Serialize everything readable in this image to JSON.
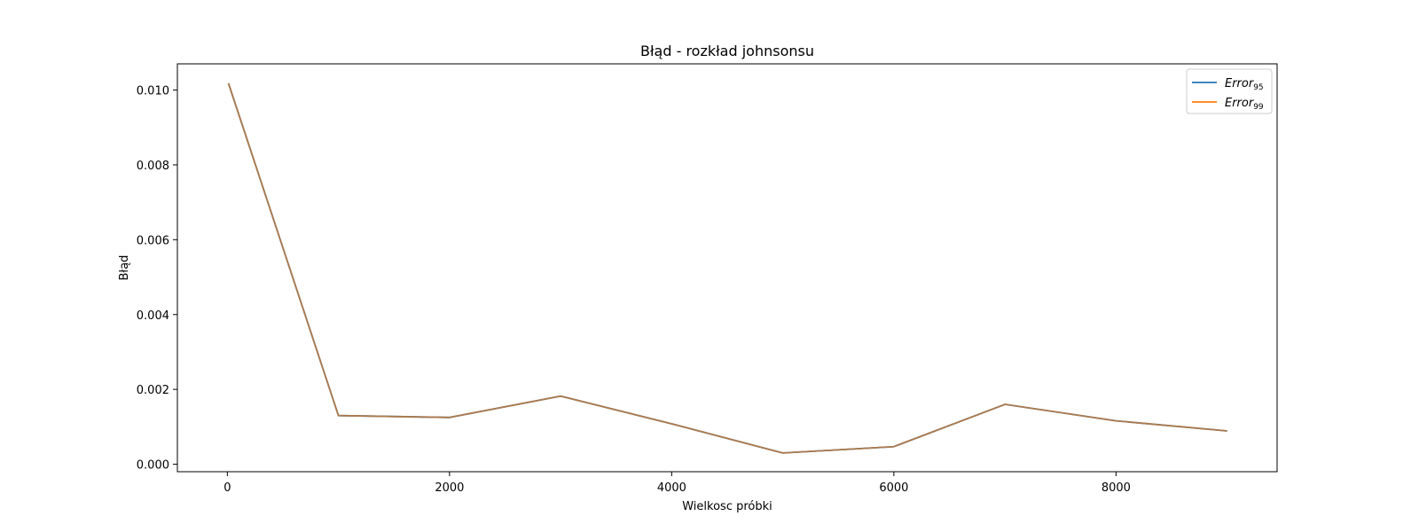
{
  "chart_data": {
    "type": "line",
    "title": "Błąd - rozkład johnsonsu",
    "xlabel": "Wielkosc próbki",
    "ylabel": "Błąd",
    "xlim": [
      -450,
      9450
    ],
    "ylim": [
      -0.0002,
      0.0107
    ],
    "xticks": [
      0,
      2000,
      4000,
      6000,
      8000
    ],
    "yticks": [
      0.0,
      0.002,
      0.004,
      0.006,
      0.008,
      0.01
    ],
    "ytick_labels": [
      "0.000",
      "0.002",
      "0.004",
      "0.006",
      "0.008",
      "0.010"
    ],
    "grid": false,
    "legend_position": "top-right",
    "x": [
      10,
      1000,
      2000,
      3000,
      4000,
      5000,
      6000,
      7000,
      8000,
      9000
    ],
    "series": [
      {
        "name": "Error",
        "subscript": "95",
        "color": "#1f77b4",
        "values": [
          0.01018,
          0.0013,
          0.00125,
          0.00182,
          0.00108,
          0.0003,
          0.00047,
          0.0016,
          0.00116,
          0.00089
        ]
      },
      {
        "name": "Error",
        "subscript": "99",
        "color": "#ff7f0e",
        "values": [
          0.01018,
          0.0013,
          0.00125,
          0.00182,
          0.00108,
          0.0003,
          0.00047,
          0.0016,
          0.00116,
          0.00089
        ]
      }
    ],
    "overlap_color": "#b07a4c"
  }
}
